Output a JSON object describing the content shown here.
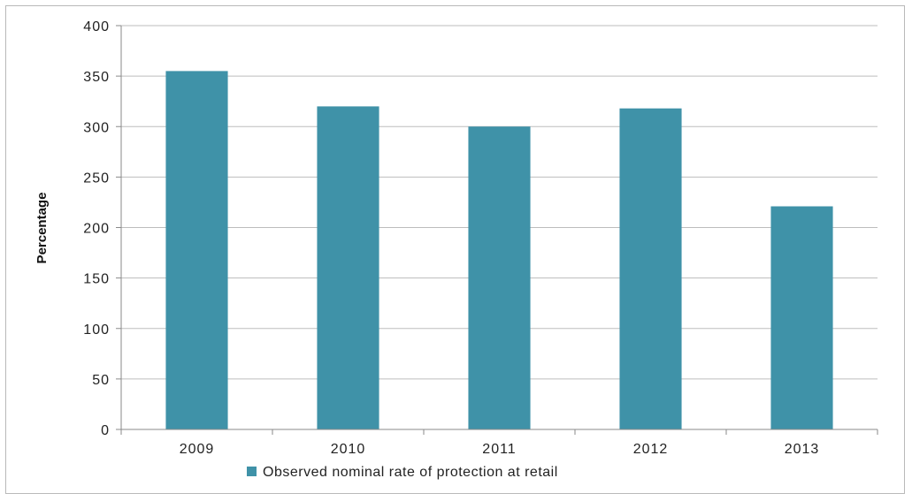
{
  "chart_data": {
    "type": "bar",
    "categories": [
      "2009",
      "2010",
      "2011",
      "2012",
      "2013"
    ],
    "series": [
      {
        "name": "Observed nominal rate of protection at retail",
        "values": [
          355,
          320,
          300,
          318,
          221
        ],
        "color": "#3f92a8"
      }
    ],
    "xlabel": "",
    "ylabel": "Percentage",
    "ylim": [
      0,
      400
    ],
    "yticks": [
      "0",
      "50",
      "100",
      "150",
      "200",
      "250",
      "300",
      "350",
      "400"
    ],
    "grid": true,
    "legend_position": "bottom"
  }
}
